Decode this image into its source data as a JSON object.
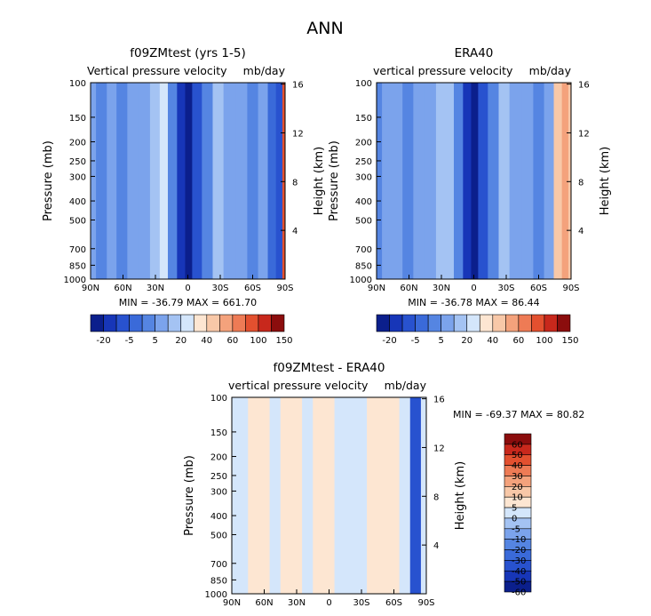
{
  "figure": {
    "title": "ANN"
  },
  "palettes": {
    "main": [
      "#0b1f8c",
      "#1736b8",
      "#2852cf",
      "#3a6ad9",
      "#5585e2",
      "#7ba3ec",
      "#a4c3f3",
      "#d4e6fb",
      "#fde6d2",
      "#f8c8a8",
      "#f4a27c",
      "#ee7b55",
      "#e3502f",
      "#c8281c",
      "#8b0d0d"
    ],
    "diff": [
      "#0b1f8c",
      "#1736b8",
      "#2852cf",
      "#3a6ad9",
      "#5585e2",
      "#7ba3ec",
      "#a4c3f3",
      "#d4e6fb",
      "#fde6d2",
      "#f8c8a8",
      "#f4a27c",
      "#ee7b55",
      "#e3502f",
      "#c8281c",
      "#8b0d0d"
    ]
  },
  "chart_data": [
    {
      "type": "heatmap",
      "title": "f09ZMtest (yrs 1-5)",
      "subtitle_left": "Vertical pressure velocity",
      "subtitle_right": "mb/day",
      "ylabel": "Pressure (mb)",
      "ylabel_right": "Height (km)",
      "xticks": [
        "90N",
        "60N",
        "30N",
        "0",
        "30S",
        "60S",
        "90S"
      ],
      "yticks": [
        "100",
        "150",
        "200",
        "250",
        "300",
        "400",
        "500",
        "700",
        "850",
        "1000"
      ],
      "yticks_right": [
        "16",
        "12",
        "8",
        "4"
      ],
      "stats": "MIN = -36.79   MAX = 661.70",
      "colorbar_labels": [
        "-20",
        "-5",
        "5",
        "20",
        "40",
        "60",
        "100",
        "150"
      ],
      "columns": [
        {
          "lat": 90,
          "level": 5
        },
        {
          "lat": 80,
          "level": 4
        },
        {
          "lat": 70,
          "level": 5
        },
        {
          "lat": 62,
          "level": 4
        },
        {
          "lat": 50,
          "level": 5
        },
        {
          "lat": 40,
          "level": 5
        },
        {
          "lat": 30,
          "level": 6
        },
        {
          "lat": 22,
          "level": 7
        },
        {
          "lat": 15,
          "level": 4
        },
        {
          "lat": 5,
          "level": 1
        },
        {
          "lat": 0,
          "level": 0
        },
        {
          "lat": -8,
          "level": 2
        },
        {
          "lat": -18,
          "level": 4
        },
        {
          "lat": -28,
          "level": 6
        },
        {
          "lat": -38,
          "level": 5
        },
        {
          "lat": -50,
          "level": 5
        },
        {
          "lat": -60,
          "level": 4
        },
        {
          "lat": -70,
          "level": 5
        },
        {
          "lat": -78,
          "level": 3
        },
        {
          "lat": -85,
          "level": 2
        },
        {
          "lat": -90,
          "level": 12
        }
      ]
    },
    {
      "type": "heatmap",
      "title": "ERA40",
      "subtitle_left": "vertical pressure velocity",
      "subtitle_right": "mb/day",
      "ylabel": "Pressure (mb)",
      "ylabel_right": "Height (km)",
      "xticks": [
        "90N",
        "60N",
        "30N",
        "0",
        "30S",
        "60S",
        "90S"
      ],
      "yticks": [
        "100",
        "150",
        "200",
        "250",
        "300",
        "400",
        "500",
        "700",
        "850",
        "1000"
      ],
      "yticks_right": [
        "16",
        "12",
        "8",
        "4"
      ],
      "stats": "MIN = -36.78   MAX =   86.44",
      "colorbar_labels": [
        "-20",
        "-5",
        "5",
        "20",
        "40",
        "60",
        "100",
        "150"
      ],
      "columns": [
        {
          "lat": 90,
          "level": 4
        },
        {
          "lat": 80,
          "level": 5
        },
        {
          "lat": 70,
          "level": 5
        },
        {
          "lat": 62,
          "level": 4
        },
        {
          "lat": 50,
          "level": 5
        },
        {
          "lat": 40,
          "level": 5
        },
        {
          "lat": 30,
          "level": 6
        },
        {
          "lat": 22,
          "level": 6
        },
        {
          "lat": 15,
          "level": 4
        },
        {
          "lat": 5,
          "level": 1
        },
        {
          "lat": 0,
          "level": 0
        },
        {
          "lat": -8,
          "level": 2
        },
        {
          "lat": -18,
          "level": 4
        },
        {
          "lat": -28,
          "level": 6
        },
        {
          "lat": -38,
          "level": 5
        },
        {
          "lat": -50,
          "level": 5
        },
        {
          "lat": -60,
          "level": 4
        },
        {
          "lat": -70,
          "level": 5
        },
        {
          "lat": -78,
          "level": 9
        },
        {
          "lat": -85,
          "level": 10
        },
        {
          "lat": -90,
          "level": 9
        }
      ]
    },
    {
      "type": "heatmap",
      "title": "f09ZMtest - ERA40",
      "subtitle_left": "vertical pressure velocity",
      "subtitle_right": "mb/day",
      "ylabel": "Pressure (mb)",
      "ylabel_right": "Height (km)",
      "xticks": [
        "90N",
        "60N",
        "30N",
        "0",
        "30S",
        "60S",
        "90S"
      ],
      "yticks": [
        "100",
        "150",
        "200",
        "250",
        "300",
        "400",
        "500",
        "700",
        "850",
        "1000"
      ],
      "yticks_right": [
        "16",
        "12",
        "8",
        "4"
      ],
      "stats": "MIN = -69.37   MAX =   80.82",
      "colorbar_labels": [
        "60",
        "50",
        "40",
        "30",
        "20",
        "10",
        "5",
        "0",
        "-5",
        "-10",
        "-20",
        "-30",
        "-40",
        "-50",
        "-60"
      ],
      "columns": [
        {
          "lat": 90,
          "level": 7
        },
        {
          "lat": 80,
          "level": 7
        },
        {
          "lat": 70,
          "level": 8
        },
        {
          "lat": 60,
          "level": 8
        },
        {
          "lat": 50,
          "level": 7
        },
        {
          "lat": 40,
          "level": 8
        },
        {
          "lat": 30,
          "level": 8
        },
        {
          "lat": 20,
          "level": 7
        },
        {
          "lat": 10,
          "level": 8
        },
        {
          "lat": 0,
          "level": 8
        },
        {
          "lat": -10,
          "level": 7
        },
        {
          "lat": -20,
          "level": 7
        },
        {
          "lat": -30,
          "level": 7
        },
        {
          "lat": -40,
          "level": 8
        },
        {
          "lat": -50,
          "level": 8
        },
        {
          "lat": -60,
          "level": 8
        },
        {
          "lat": -70,
          "level": 7
        },
        {
          "lat": -80,
          "level": 2
        },
        {
          "lat": -90,
          "level": 7
        }
      ]
    }
  ]
}
